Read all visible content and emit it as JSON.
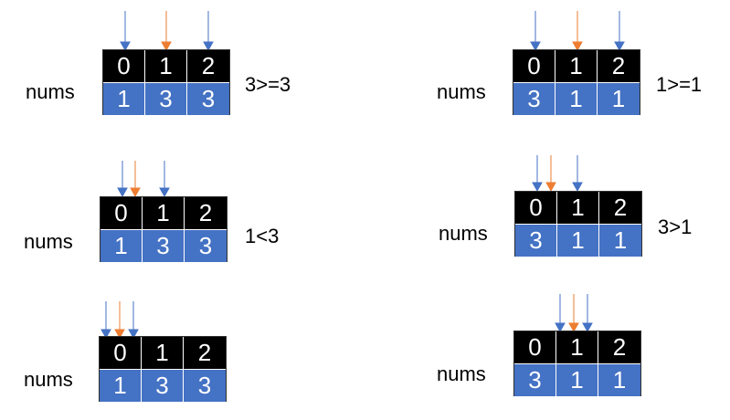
{
  "nums_label": "nums",
  "colors": {
    "blue": "#4472c4",
    "orange": "#ed7d31",
    "index_bg": "#000000"
  },
  "panels": [
    {
      "indices": [
        "0",
        "1",
        "2"
      ],
      "values": [
        "1",
        "3",
        "3"
      ],
      "comparison": "3>=3"
    },
    {
      "indices": [
        "0",
        "1",
        "2"
      ],
      "values": [
        "1",
        "3",
        "3"
      ],
      "comparison": "1<3"
    },
    {
      "indices": [
        "0",
        "1",
        "2"
      ],
      "values": [
        "1",
        "3",
        "3"
      ],
      "comparison": ""
    },
    {
      "indices": [
        "0",
        "1",
        "2"
      ],
      "values": [
        "3",
        "1",
        "1"
      ],
      "comparison": "1>=1"
    },
    {
      "indices": [
        "0",
        "1",
        "2"
      ],
      "values": [
        "3",
        "1",
        "1"
      ],
      "comparison": "3>1"
    },
    {
      "indices": [
        "0",
        "1",
        "2"
      ],
      "values": [
        "3",
        "1",
        "1"
      ],
      "comparison": ""
    }
  ]
}
